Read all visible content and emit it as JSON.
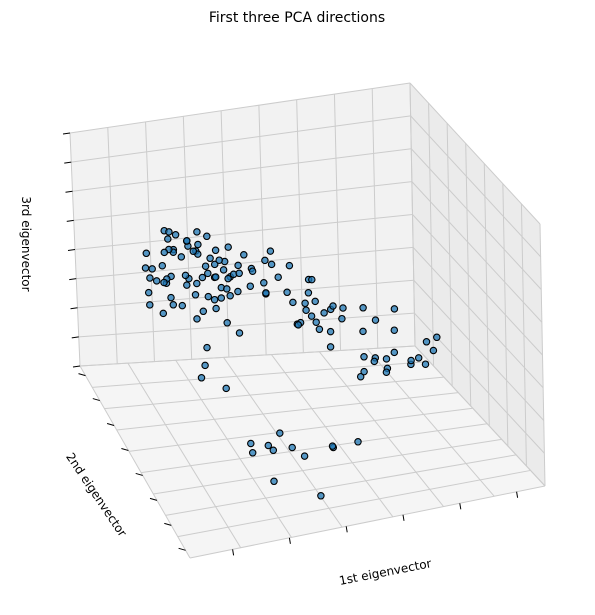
{
  "chart_data": {
    "type": "scatter",
    "title": "First three PCA directions",
    "xlabel": "1st eigenvector",
    "ylabel": "2nd eigenvector",
    "zlabel": "3rd eigenvector",
    "projection": "3d",
    "elev_deg": -150,
    "azim_deg": 110,
    "tick_labels_visible": false,
    "grid": true,
    "marker_edge_color": "#000000",
    "point_color": "#1f77b4",
    "pane_color": "#f2f2f2",
    "series": [
      {
        "points": [
          [
            0.18,
            0.28,
            0.6
          ],
          [
            0.22,
            0.32,
            0.62
          ],
          [
            0.15,
            0.24,
            0.55
          ],
          [
            0.25,
            0.3,
            0.58
          ],
          [
            0.2,
            0.35,
            0.66
          ],
          [
            0.12,
            0.27,
            0.59
          ],
          [
            0.28,
            0.26,
            0.57
          ],
          [
            0.17,
            0.33,
            0.52
          ],
          [
            0.23,
            0.22,
            0.63
          ],
          [
            0.3,
            0.31,
            0.61
          ],
          [
            0.14,
            0.36,
            0.64
          ],
          [
            0.19,
            0.21,
            0.53
          ],
          [
            0.26,
            0.37,
            0.68
          ],
          [
            0.11,
            0.3,
            0.5
          ],
          [
            0.24,
            0.25,
            0.7
          ],
          [
            0.21,
            0.29,
            0.48
          ],
          [
            0.16,
            0.34,
            0.56
          ],
          [
            0.27,
            0.23,
            0.66
          ],
          [
            0.13,
            0.26,
            0.62
          ],
          [
            0.29,
            0.34,
            0.54
          ],
          [
            0.22,
            0.38,
            0.6
          ],
          [
            0.18,
            0.2,
            0.58
          ],
          [
            0.31,
            0.28,
            0.64
          ],
          [
            0.1,
            0.32,
            0.57
          ],
          [
            0.25,
            0.36,
            0.51
          ],
          [
            0.2,
            0.24,
            0.68
          ],
          [
            0.15,
            0.3,
            0.46
          ],
          [
            0.28,
            0.33,
            0.71
          ],
          [
            0.12,
            0.23,
            0.6
          ],
          [
            0.23,
            0.27,
            0.55
          ],
          [
            0.35,
            0.3,
            0.6
          ],
          [
            0.33,
            0.36,
            0.57
          ],
          [
            0.38,
            0.28,
            0.63
          ],
          [
            0.36,
            0.25,
            0.55
          ],
          [
            0.34,
            0.4,
            0.62
          ],
          [
            0.4,
            0.33,
            0.58
          ],
          [
            0.37,
            0.22,
            0.66
          ],
          [
            0.32,
            0.31,
            0.52
          ],
          [
            0.39,
            0.37,
            0.69
          ],
          [
            0.42,
            0.29,
            0.61
          ],
          [
            0.44,
            0.35,
            0.56
          ],
          [
            0.41,
            0.24,
            0.64
          ],
          [
            0.45,
            0.31,
            0.67
          ],
          [
            0.43,
            0.38,
            0.59
          ],
          [
            0.46,
            0.27,
            0.54
          ],
          [
            0.48,
            0.34,
            0.62
          ],
          [
            0.47,
            0.3,
            0.7
          ],
          [
            0.5,
            0.36,
            0.57
          ],
          [
            0.49,
            0.25,
            0.6
          ],
          [
            0.52,
            0.32,
            0.65
          ],
          [
            0.58,
            0.28,
            0.45
          ],
          [
            0.6,
            0.32,
            0.4
          ],
          [
            0.56,
            0.35,
            0.48
          ],
          [
            0.62,
            0.25,
            0.43
          ],
          [
            0.55,
            0.3,
            0.38
          ],
          [
            0.64,
            0.33,
            0.46
          ],
          [
            0.59,
            0.38,
            0.42
          ],
          [
            0.61,
            0.22,
            0.5
          ],
          [
            0.57,
            0.27,
            0.36
          ],
          [
            0.63,
            0.36,
            0.39
          ],
          [
            0.66,
            0.29,
            0.44
          ],
          [
            0.54,
            0.34,
            0.41
          ],
          [
            0.65,
            0.24,
            0.37
          ],
          [
            0.58,
            0.31,
            0.52
          ],
          [
            0.67,
            0.35,
            0.48
          ],
          [
            0.55,
            0.26,
            0.44
          ],
          [
            0.62,
            0.39,
            0.35
          ],
          [
            0.6,
            0.28,
            0.55
          ],
          [
            0.68,
            0.31,
            0.4
          ],
          [
            0.57,
            0.37,
            0.47
          ],
          [
            0.15,
            0.68,
            0.55
          ],
          [
            0.2,
            0.72,
            0.48
          ],
          [
            0.35,
            0.75,
            0.3
          ],
          [
            0.1,
            0.8,
            0.6
          ],
          [
            0.28,
            0.7,
            0.22
          ],
          [
            0.42,
            0.65,
            0.15
          ],
          [
            0.5,
            0.78,
            0.25
          ],
          [
            0.3,
            0.85,
            0.18
          ],
          [
            0.55,
            0.62,
            0.12
          ],
          [
            0.22,
            0.9,
            0.35
          ],
          [
            0.45,
            0.82,
            0.08
          ],
          [
            0.38,
            0.6,
            0.1
          ],
          [
            0.6,
            0.7,
            0.2
          ],
          [
            0.25,
            0.95,
            0.42
          ],
          [
            0.48,
            0.58,
            0.05
          ],
          [
            0.05,
            0.45,
            0.85
          ],
          [
            0.12,
            0.4,
            0.9
          ],
          [
            0.08,
            0.52,
            0.78
          ],
          [
            0.3,
            0.15,
            0.3
          ],
          [
            0.35,
            0.1,
            0.35
          ],
          [
            0.4,
            0.12,
            0.25
          ],
          [
            0.32,
            0.18,
            0.2
          ],
          [
            0.38,
            0.08,
            0.28
          ],
          [
            0.43,
            0.14,
            0.22
          ],
          [
            0.75,
            0.4,
            0.3
          ],
          [
            0.8,
            0.35,
            0.25
          ],
          [
            0.7,
            0.45,
            0.35
          ],
          [
            0.78,
            0.3,
            0.2
          ],
          [
            0.85,
            0.42,
            0.28
          ],
          [
            0.72,
            0.38,
            0.4
          ],
          [
            0.88,
            0.33,
            0.22
          ],
          [
            0.76,
            0.48,
            0.32
          ],
          [
            0.82,
            0.36,
            0.38
          ],
          [
            0.9,
            0.4,
            0.26
          ],
          [
            0.74,
            0.32,
            0.45
          ],
          [
            0.86,
            0.46,
            0.34
          ],
          [
            0.79,
            0.28,
            0.36
          ],
          [
            0.93,
            0.38,
            0.3
          ],
          [
            0.7,
            0.42,
            0.24
          ],
          [
            0.84,
            0.3,
            0.42
          ],
          [
            0.77,
            0.44,
            0.27
          ],
          [
            0.95,
            0.35,
            0.33
          ],
          [
            0.73,
            0.36,
            0.21
          ],
          [
            0.89,
            0.44,
            0.39
          ],
          [
            0.81,
            0.39,
            0.31
          ],
          [
            0.18,
            0.3,
            0.72
          ],
          [
            0.24,
            0.34,
            0.74
          ],
          [
            0.2,
            0.26,
            0.76
          ],
          [
            0.26,
            0.28,
            0.73
          ],
          [
            0.16,
            0.32,
            0.75
          ],
          [
            0.22,
            0.36,
            0.77
          ],
          [
            0.28,
            0.3,
            0.78
          ],
          [
            0.19,
            0.22,
            0.71
          ],
          [
            0.25,
            0.38,
            0.72
          ],
          [
            0.21,
            0.33,
            0.79
          ],
          [
            0.27,
            0.24,
            0.75
          ],
          [
            0.17,
            0.29,
            0.8
          ],
          [
            0.23,
            0.27,
            0.74
          ],
          [
            0.29,
            0.35,
            0.76
          ],
          [
            0.15,
            0.31,
            0.73
          ],
          [
            0.3,
            0.32,
            0.62
          ],
          [
            0.34,
            0.28,
            0.65
          ],
          [
            0.31,
            0.34,
            0.59
          ],
          [
            0.36,
            0.3,
            0.61
          ],
          [
            0.33,
            0.26,
            0.64
          ],
          [
            0.32,
            0.36,
            0.6
          ],
          [
            0.37,
            0.32,
            0.63
          ],
          [
            0.35,
            0.24,
            0.58
          ]
        ]
      }
    ]
  }
}
